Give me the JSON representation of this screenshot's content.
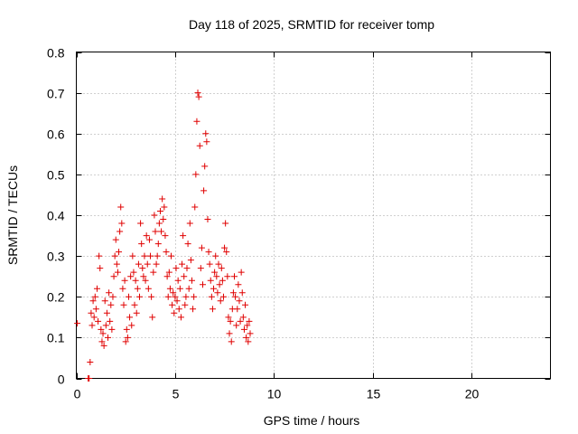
{
  "chart_data": {
    "type": "scatter",
    "title": "Day 118 of 2025, SRMTID for receiver tomp",
    "xlabel": "GPS time / hours",
    "ylabel": "SRMTID / TECUs",
    "xlim": [
      0,
      24
    ],
    "ylim": [
      0,
      0.8
    ],
    "xticks": [
      0,
      5,
      10,
      15,
      20
    ],
    "yticks": [
      0,
      0.1,
      0.2,
      0.3,
      0.4,
      0.5,
      0.6,
      0.7,
      0.8
    ],
    "xtick_labels": [
      "0",
      "5",
      "10",
      "15",
      "20"
    ],
    "ytick_labels": [
      "0",
      "0.1",
      "0.2",
      "0.3",
      "0.4",
      "0.5",
      "0.6",
      "0.7",
      "0.8"
    ],
    "grid": true,
    "marker": "+",
    "color": "#e00000",
    "series": [
      {
        "name": "SRMTID",
        "points": [
          [
            0.05,
            0.135
          ],
          [
            0.6,
            0.0
          ],
          [
            0.65,
            0.0
          ],
          [
            0.7,
            0.04
          ],
          [
            0.75,
            0.16
          ],
          [
            0.8,
            0.13
          ],
          [
            0.85,
            0.19
          ],
          [
            0.9,
            0.15
          ],
          [
            0.95,
            0.2
          ],
          [
            1.0,
            0.17
          ],
          [
            1.05,
            0.22
          ],
          [
            1.1,
            0.14
          ],
          [
            1.15,
            0.3
          ],
          [
            1.2,
            0.27
          ],
          [
            1.25,
            0.12
          ],
          [
            1.3,
            0.09
          ],
          [
            1.35,
            0.11
          ],
          [
            1.4,
            0.08
          ],
          [
            1.45,
            0.19
          ],
          [
            1.5,
            0.13
          ],
          [
            1.55,
            0.16
          ],
          [
            1.6,
            0.1
          ],
          [
            1.65,
            0.21
          ],
          [
            1.7,
            0.14
          ],
          [
            1.75,
            0.18
          ],
          [
            1.8,
            0.12
          ],
          [
            1.85,
            0.2
          ],
          [
            1.9,
            0.25
          ],
          [
            1.95,
            0.3
          ],
          [
            2.0,
            0.34
          ],
          [
            2.05,
            0.28
          ],
          [
            2.1,
            0.26
          ],
          [
            2.15,
            0.31
          ],
          [
            2.2,
            0.36
          ],
          [
            2.25,
            0.42
          ],
          [
            2.3,
            0.38
          ],
          [
            2.35,
            0.22
          ],
          [
            2.4,
            0.18
          ],
          [
            2.45,
            0.24
          ],
          [
            2.5,
            0.09
          ],
          [
            2.55,
            0.12
          ],
          [
            2.6,
            0.1
          ],
          [
            2.65,
            0.2
          ],
          [
            2.7,
            0.15
          ],
          [
            2.75,
            0.25
          ],
          [
            2.8,
            0.13
          ],
          [
            2.85,
            0.3
          ],
          [
            2.9,
            0.26
          ],
          [
            2.95,
            0.18
          ],
          [
            3.0,
            0.24
          ],
          [
            3.05,
            0.16
          ],
          [
            3.1,
            0.22
          ],
          [
            3.15,
            0.28
          ],
          [
            3.2,
            0.2
          ],
          [
            3.25,
            0.38
          ],
          [
            3.3,
            0.33
          ],
          [
            3.35,
            0.27
          ],
          [
            3.4,
            0.25
          ],
          [
            3.45,
            0.3
          ],
          [
            3.5,
            0.24
          ],
          [
            3.55,
            0.35
          ],
          [
            3.6,
            0.28
          ],
          [
            3.65,
            0.22
          ],
          [
            3.7,
            0.34
          ],
          [
            3.75,
            0.3
          ],
          [
            3.8,
            0.2
          ],
          [
            3.85,
            0.15
          ],
          [
            3.9,
            0.26
          ],
          [
            3.95,
            0.4
          ],
          [
            4.0,
            0.36
          ],
          [
            4.05,
            0.28
          ],
          [
            4.1,
            0.3
          ],
          [
            4.15,
            0.33
          ],
          [
            4.2,
            0.38
          ],
          [
            4.25,
            0.41
          ],
          [
            4.3,
            0.36
          ],
          [
            4.35,
            0.44
          ],
          [
            4.4,
            0.39
          ],
          [
            4.45,
            0.42
          ],
          [
            4.5,
            0.35
          ],
          [
            4.55,
            0.31
          ],
          [
            4.6,
            0.25
          ],
          [
            4.65,
            0.2
          ],
          [
            4.7,
            0.26
          ],
          [
            4.75,
            0.22
          ],
          [
            4.8,
            0.3
          ],
          [
            4.85,
            0.18
          ],
          [
            4.9,
            0.21
          ],
          [
            4.95,
            0.16
          ],
          [
            5.0,
            0.2
          ],
          [
            5.05,
            0.27
          ],
          [
            5.1,
            0.19
          ],
          [
            5.15,
            0.24
          ],
          [
            5.2,
            0.17
          ],
          [
            5.25,
            0.22
          ],
          [
            5.3,
            0.15
          ],
          [
            5.35,
            0.28
          ],
          [
            5.4,
            0.35
          ],
          [
            5.45,
            0.25
          ],
          [
            5.5,
            0.18
          ],
          [
            5.55,
            0.2
          ],
          [
            5.6,
            0.27
          ],
          [
            5.65,
            0.33
          ],
          [
            5.7,
            0.22
          ],
          [
            5.75,
            0.38
          ],
          [
            5.8,
            0.29
          ],
          [
            5.85,
            0.24
          ],
          [
            5.9,
            0.17
          ],
          [
            5.95,
            0.2
          ],
          [
            6.0,
            0.42
          ],
          [
            6.05,
            0.5
          ],
          [
            6.1,
            0.63
          ],
          [
            6.15,
            0.7
          ],
          [
            6.2,
            0.69
          ],
          [
            6.25,
            0.57
          ],
          [
            6.3,
            0.27
          ],
          [
            6.35,
            0.32
          ],
          [
            6.4,
            0.23
          ],
          [
            6.45,
            0.46
          ],
          [
            6.5,
            0.52
          ],
          [
            6.55,
            0.6
          ],
          [
            6.6,
            0.58
          ],
          [
            6.65,
            0.39
          ],
          [
            6.7,
            0.31
          ],
          [
            6.75,
            0.28
          ],
          [
            6.8,
            0.24
          ],
          [
            6.85,
            0.2
          ],
          [
            6.9,
            0.17
          ],
          [
            6.95,
            0.22
          ],
          [
            7.0,
            0.26
          ],
          [
            7.05,
            0.3
          ],
          [
            7.1,
            0.25
          ],
          [
            7.15,
            0.21
          ],
          [
            7.2,
            0.28
          ],
          [
            7.25,
            0.23
          ],
          [
            7.3,
            0.19
          ],
          [
            7.35,
            0.27
          ],
          [
            7.4,
            0.24
          ],
          [
            7.45,
            0.2
          ],
          [
            7.5,
            0.32
          ],
          [
            7.55,
            0.38
          ],
          [
            7.6,
            0.31
          ],
          [
            7.65,
            0.25
          ],
          [
            7.7,
            0.15
          ],
          [
            7.75,
            0.11
          ],
          [
            7.8,
            0.14
          ],
          [
            7.85,
            0.09
          ],
          [
            7.9,
            0.17
          ],
          [
            7.95,
            0.21
          ],
          [
            8.0,
            0.25
          ],
          [
            8.05,
            0.2
          ],
          [
            8.1,
            0.13
          ],
          [
            8.15,
            0.17
          ],
          [
            8.2,
            0.23
          ],
          [
            8.25,
            0.19
          ],
          [
            8.3,
            0.14
          ],
          [
            8.35,
            0.26
          ],
          [
            8.4,
            0.21
          ],
          [
            8.45,
            0.15
          ],
          [
            8.5,
            0.12
          ],
          [
            8.55,
            0.18
          ],
          [
            8.6,
            0.1
          ],
          [
            8.65,
            0.13
          ],
          [
            8.7,
            0.09
          ],
          [
            8.75,
            0.14
          ],
          [
            8.8,
            0.11
          ]
        ]
      }
    ]
  }
}
